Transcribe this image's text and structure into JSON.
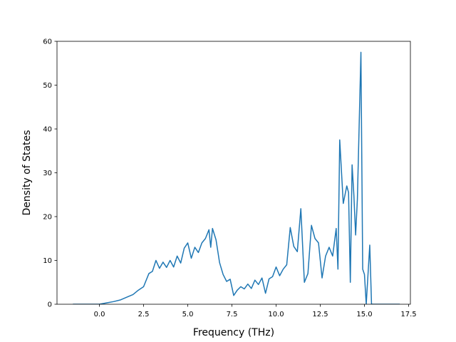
{
  "chart_data": {
    "type": "line",
    "title": "",
    "xlabel": "Frequency (THz)",
    "ylabel": "Density of States",
    "xlim": [
      -2.4,
      17.6
    ],
    "ylim": [
      0,
      60
    ],
    "grid": false,
    "x_ticks": [
      0.0,
      2.5,
      5.0,
      7.5,
      10.0,
      12.5,
      15.0,
      17.5
    ],
    "x_tick_labels": [
      "0.0",
      "2.5",
      "5.0",
      "7.5",
      "10.0",
      "12.5",
      "15.0",
      "17.5"
    ],
    "y_ticks": [
      0,
      10,
      20,
      30,
      40,
      50,
      60
    ],
    "y_tick_labels": [
      "0",
      "10",
      "20",
      "30",
      "40",
      "50",
      "60"
    ],
    "line_color": "#1f77b4",
    "series": [
      {
        "x": [
          -1.5,
          -1.0,
          -0.5,
          0.0,
          0.4,
          0.8,
          1.2,
          1.6,
          1.9,
          2.2,
          2.5,
          2.8,
          3.0,
          3.2,
          3.4,
          3.6,
          3.8,
          4.0,
          4.2,
          4.4,
          4.6,
          4.8,
          5.0,
          5.2,
          5.4,
          5.6,
          5.8,
          6.0,
          6.2,
          6.3,
          6.4,
          6.6,
          6.8,
          7.0,
          7.2,
          7.4,
          7.6,
          7.8,
          8.0,
          8.2,
          8.4,
          8.6,
          8.8,
          9.0,
          9.2,
          9.4,
          9.6,
          9.8,
          10.0,
          10.2,
          10.4,
          10.6,
          10.8,
          11.0,
          11.2,
          11.4,
          11.6,
          11.8,
          12.0,
          12.2,
          12.4,
          12.6,
          12.8,
          13.0,
          13.2,
          13.4,
          13.5,
          13.6,
          13.8,
          14.0,
          14.1,
          14.2,
          14.3,
          14.4,
          14.5,
          14.6,
          14.8,
          14.9,
          15.0,
          15.1,
          15.3,
          15.4,
          15.5,
          16.0,
          17.0
        ],
        "y": [
          0,
          0,
          0,
          0,
          0.3,
          0.6,
          1.0,
          1.7,
          2.2,
          3.2,
          4.0,
          7.0,
          7.5,
          10.0,
          8.2,
          9.6,
          8.4,
          10.0,
          8.5,
          11.0,
          9.4,
          12.8,
          14.0,
          10.5,
          13.0,
          11.8,
          14.0,
          15.0,
          17.0,
          13.0,
          17.3,
          14.7,
          9.5,
          6.8,
          5.2,
          5.7,
          2.0,
          3.2,
          4.0,
          3.5,
          4.6,
          3.6,
          5.5,
          4.5,
          6.0,
          2.5,
          5.8,
          6.3,
          8.5,
          6.5,
          8.0,
          9.0,
          17.5,
          13.2,
          12.0,
          21.8,
          5.0,
          7.0,
          18.0,
          15.0,
          14.0,
          6.0,
          11.0,
          13.0,
          11.0,
          17.3,
          8.0,
          37.5,
          23.0,
          27.0,
          25.5,
          5.0,
          31.8,
          25.0,
          15.8,
          24.0,
          57.5,
          8.0,
          6.8,
          0,
          13.5,
          0,
          0,
          0,
          0
        ]
      }
    ]
  }
}
